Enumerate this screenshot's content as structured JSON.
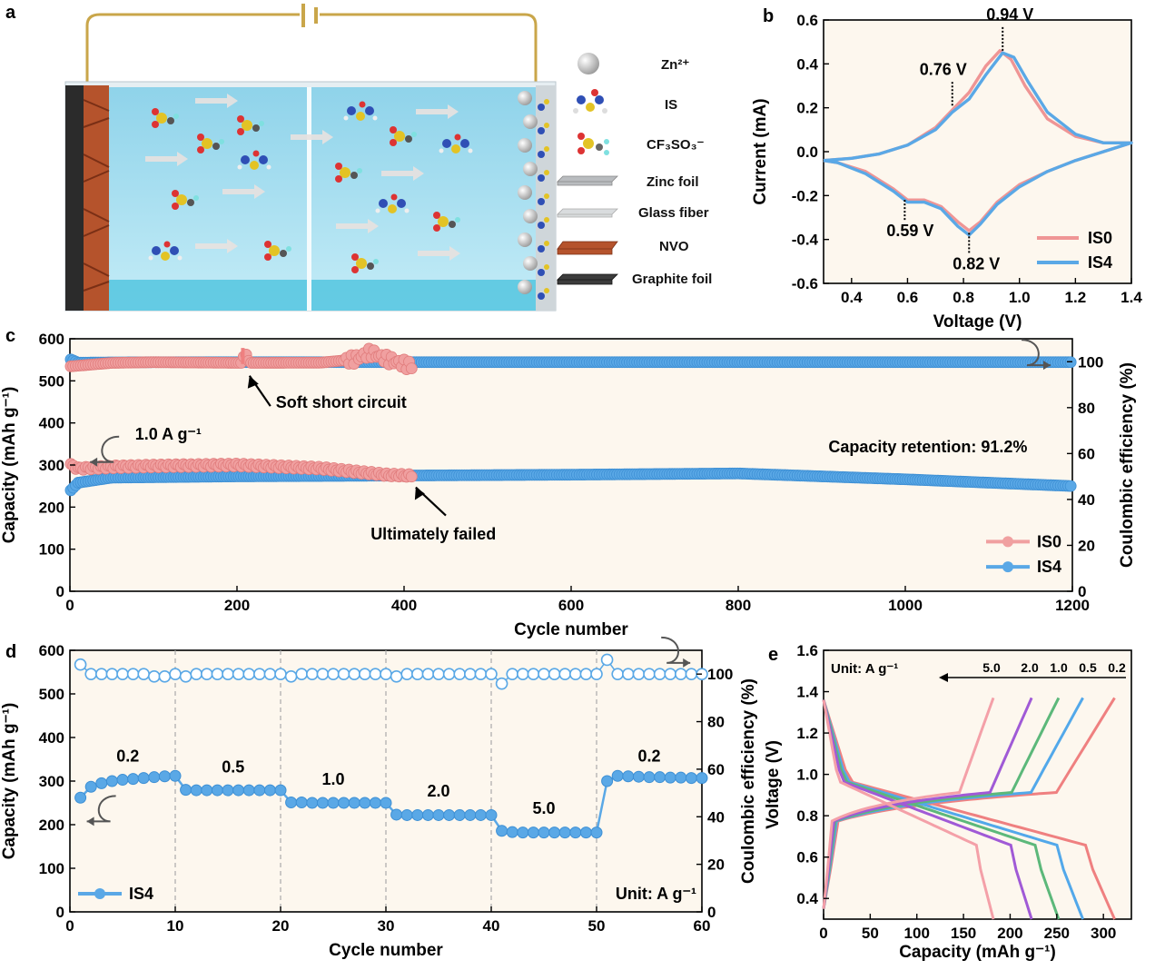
{
  "panels": {
    "a": "a",
    "b": "b",
    "c": "c",
    "d": "d",
    "e": "e"
  },
  "panel_a": {
    "legend": [
      {
        "icon": "zn-ion",
        "label": "Zn²⁺"
      },
      {
        "icon": "is-molecule",
        "label": "IS"
      },
      {
        "icon": "triflate-molecule",
        "label": "CF₃SO₃⁻"
      },
      {
        "icon": "zinc-foil",
        "label": "Zinc foil"
      },
      {
        "icon": "glass-fiber",
        "label": "Glass fiber"
      },
      {
        "icon": "nvo",
        "label": "NVO"
      },
      {
        "icon": "graphite-foil",
        "label": "Graphite foil"
      }
    ],
    "colors": {
      "electrolyte": "#9fd8ec",
      "nvo": "#b5532c",
      "wire": "#c9a64a"
    }
  },
  "chart_data": [
    {
      "id": "b",
      "type": "line",
      "xlabel": "Voltage (V)",
      "ylabel": "Current (mA)",
      "xlim": [
        0.3,
        1.4
      ],
      "ylim": [
        -0.6,
        0.6
      ],
      "xticks": [
        0.4,
        0.6,
        0.8,
        1.0,
        1.2,
        1.4
      ],
      "yticks": [
        -0.6,
        -0.4,
        -0.2,
        0.0,
        0.2,
        0.4,
        0.6
      ],
      "legend_position": "bottom-right",
      "annotations": [
        {
          "text": "0.94 V",
          "x": 0.94,
          "y": 0.46
        },
        {
          "text": "0.76 V",
          "x": 0.76,
          "y": 0.21
        },
        {
          "text": "0.59 V",
          "x": 0.59,
          "y": -0.22
        },
        {
          "text": "0.82 V",
          "x": 0.82,
          "y": -0.37
        }
      ],
      "series": [
        {
          "name": "IS0",
          "color": "#ef9595",
          "anodic": [
            [
              0.3,
              -0.04
            ],
            [
              0.4,
              -0.03
            ],
            [
              0.5,
              -0.01
            ],
            [
              0.6,
              0.03
            ],
            [
              0.7,
              0.11
            ],
            [
              0.76,
              0.19
            ],
            [
              0.82,
              0.27
            ],
            [
              0.88,
              0.39
            ],
            [
              0.93,
              0.46
            ],
            [
              0.97,
              0.42
            ],
            [
              1.02,
              0.3
            ],
            [
              1.1,
              0.15
            ],
            [
              1.2,
              0.07
            ],
            [
              1.3,
              0.04
            ],
            [
              1.4,
              0.04
            ]
          ],
          "cathodic": [
            [
              1.4,
              0.04
            ],
            [
              1.3,
              0.0
            ],
            [
              1.2,
              -0.04
            ],
            [
              1.1,
              -0.09
            ],
            [
              1.0,
              -0.15
            ],
            [
              0.92,
              -0.23
            ],
            [
              0.86,
              -0.32
            ],
            [
              0.82,
              -0.36
            ],
            [
              0.78,
              -0.32
            ],
            [
              0.72,
              -0.25
            ],
            [
              0.66,
              -0.22
            ],
            [
              0.6,
              -0.22
            ],
            [
              0.55,
              -0.17
            ],
            [
              0.45,
              -0.09
            ],
            [
              0.35,
              -0.05
            ],
            [
              0.3,
              -0.04
            ]
          ]
        },
        {
          "name": "IS4",
          "color": "#5aa8e6",
          "anodic": [
            [
              0.3,
              -0.04
            ],
            [
              0.4,
              -0.03
            ],
            [
              0.5,
              -0.01
            ],
            [
              0.6,
              0.03
            ],
            [
              0.7,
              0.1
            ],
            [
              0.76,
              0.18
            ],
            [
              0.82,
              0.24
            ],
            [
              0.88,
              0.35
            ],
            [
              0.94,
              0.45
            ],
            [
              0.98,
              0.43
            ],
            [
              1.03,
              0.32
            ],
            [
              1.1,
              0.18
            ],
            [
              1.2,
              0.08
            ],
            [
              1.3,
              0.04
            ],
            [
              1.4,
              0.04
            ]
          ],
          "cathodic": [
            [
              1.4,
              0.04
            ],
            [
              1.3,
              0.0
            ],
            [
              1.2,
              -0.04
            ],
            [
              1.1,
              -0.09
            ],
            [
              1.0,
              -0.16
            ],
            [
              0.92,
              -0.24
            ],
            [
              0.86,
              -0.33
            ],
            [
              0.82,
              -0.38
            ],
            [
              0.78,
              -0.34
            ],
            [
              0.72,
              -0.26
            ],
            [
              0.66,
              -0.23
            ],
            [
              0.6,
              -0.23
            ],
            [
              0.55,
              -0.18
            ],
            [
              0.45,
              -0.1
            ],
            [
              0.35,
              -0.05
            ],
            [
              0.3,
              -0.04
            ]
          ]
        }
      ]
    },
    {
      "id": "c",
      "type": "scatter",
      "xlabel": "Cycle number",
      "ylabel": "Capacity (mAh g⁻¹)",
      "y2label": "Coulombic efficiency (%)",
      "xlim": [
        0,
        1200
      ],
      "ylim": [
        0,
        600
      ],
      "y2lim": [
        0,
        110
      ],
      "xticks": [
        0,
        200,
        400,
        600,
        800,
        1000,
        1200
      ],
      "yticks": [
        0,
        100,
        200,
        300,
        400,
        500,
        600
      ],
      "y2ticks": [
        0,
        20,
        40,
        60,
        80,
        100
      ],
      "legend_position": "bottom-right",
      "annotations": [
        {
          "text": "Soft short circuit",
          "x": 210,
          "y": 545
        },
        {
          "text": "Ultimately failed",
          "x": 410,
          "y": 275
        },
        {
          "text": "1.0 A g⁻¹",
          "x": 60,
          "y": 300
        },
        {
          "text": "Capacity retention: 91.2%",
          "x": 1000,
          "y": 340
        }
      ],
      "series": [
        {
          "name": "IS0",
          "color": "#f0a0a0",
          "capacity": [
            [
              1,
              300
            ],
            [
              10,
              292
            ],
            [
              50,
              296
            ],
            [
              100,
              298
            ],
            [
              200,
              300
            ],
            [
              300,
              292
            ],
            [
              350,
              282
            ],
            [
              380,
              276
            ],
            [
              410,
              274
            ]
          ],
          "ce": [
            [
              1,
              98
            ],
            [
              50,
              99.5
            ],
            [
              100,
              99.8
            ],
            [
              205,
              99.5
            ],
            [
              210,
              104
            ],
            [
              215,
              99.5
            ],
            [
              300,
              99.6
            ],
            [
              340,
              101
            ],
            [
              360,
              104
            ],
            [
              380,
              101
            ],
            [
              400,
              99
            ],
            [
              410,
              98
            ]
          ]
        },
        {
          "name": "IS4",
          "color": "#5aa8e6",
          "capacity": [
            [
              1,
              240
            ],
            [
              10,
              258
            ],
            [
              50,
              270
            ],
            [
              200,
              273
            ],
            [
              400,
              275
            ],
            [
              600,
              277
            ],
            [
              800,
              280
            ],
            [
              1000,
              266
            ],
            [
              1200,
              250
            ]
          ],
          "ce": [
            [
              1,
              101
            ],
            [
              10,
              99.6
            ],
            [
              100,
              99.8
            ],
            [
              600,
              99.8
            ],
            [
              1200,
              99.8
            ]
          ]
        }
      ]
    },
    {
      "id": "d",
      "type": "scatter",
      "xlabel": "Cycle number",
      "ylabel": "Capacity (mAh g⁻¹)",
      "y2label": "Coulombic efficiency (%)",
      "xlim": [
        0,
        60
      ],
      "ylim": [
        0,
        600
      ],
      "y2lim": [
        0,
        110
      ],
      "xticks": [
        0,
        10,
        20,
        30,
        40,
        50,
        60
      ],
      "yticks": [
        0,
        100,
        200,
        300,
        400,
        500,
        600
      ],
      "y2ticks": [
        0,
        20,
        40,
        60,
        80,
        100
      ],
      "unit_note": "Unit: A g⁻¹",
      "legend_position": "bottom-left",
      "rate_labels": [
        {
          "text": "0.2",
          "x": 5.5,
          "y": 345
        },
        {
          "text": "0.5",
          "x": 15.5,
          "y": 320
        },
        {
          "text": "1.0",
          "x": 25,
          "y": 292
        },
        {
          "text": "2.0",
          "x": 35,
          "y": 265
        },
        {
          "text": "5.0",
          "x": 45,
          "y": 225
        },
        {
          "text": "0.2",
          "x": 55,
          "y": 345
        }
      ],
      "series": [
        {
          "name": "IS4",
          "color": "#5aa8e6",
          "capacity": [
            262,
            287,
            295,
            300,
            303,
            305,
            307,
            309,
            311,
            312,
            280,
            279,
            279,
            279,
            279,
            279,
            279,
            279,
            279,
            279,
            251,
            251,
            250,
            250,
            250,
            250,
            250,
            250,
            250,
            250,
            223,
            222,
            222,
            222,
            222,
            222,
            222,
            222,
            222,
            222,
            186,
            183,
            182,
            182,
            182,
            182,
            182,
            182,
            182,
            182,
            300,
            312,
            311,
            310,
            309,
            309,
            308,
            308,
            307,
            307
          ],
          "ce": [
            104,
            100,
            100,
            100,
            100,
            100,
            100,
            99,
            99,
            100,
            99,
            100,
            100,
            100,
            100,
            100,
            100,
            100,
            100,
            100,
            99,
            100,
            100,
            100,
            100,
            100,
            100,
            100,
            100,
            100,
            99,
            100,
            100,
            100,
            100,
            100,
            100,
            100,
            100,
            100,
            96,
            100,
            100,
            100,
            100,
            100,
            100,
            100,
            100,
            100,
            106,
            100,
            100,
            100,
            100,
            100,
            100,
            100,
            100,
            100
          ]
        }
      ]
    },
    {
      "id": "e",
      "type": "line",
      "xlabel": "Capacity (mAh g⁻¹)",
      "ylabel": "Voltage (V)",
      "xlim": [
        0,
        330
      ],
      "ylim": [
        0.3,
        1.6
      ],
      "xticks": [
        0,
        50,
        100,
        150,
        200,
        250,
        300
      ],
      "yticks": [
        0.4,
        0.6,
        0.8,
        1.0,
        1.2,
        1.4,
        1.6
      ],
      "unit_note": "Unit: A g⁻¹",
      "rate_labels": [
        "5.0",
        "2.0",
        "1.0",
        "0.5",
        "0.2"
      ],
      "series": [
        {
          "name": "0.2",
          "color": "#ef8080",
          "capacity": 312
        },
        {
          "name": "0.5",
          "color": "#52a8ea",
          "capacity": 278
        },
        {
          "name": "1.0",
          "color": "#5cb87a",
          "capacity": 252
        },
        {
          "name": "2.0",
          "color": "#a05ad6",
          "capacity": 223
        },
        {
          "name": "5.0",
          "color": "#f4a0a8",
          "capacity": 182
        }
      ]
    }
  ]
}
